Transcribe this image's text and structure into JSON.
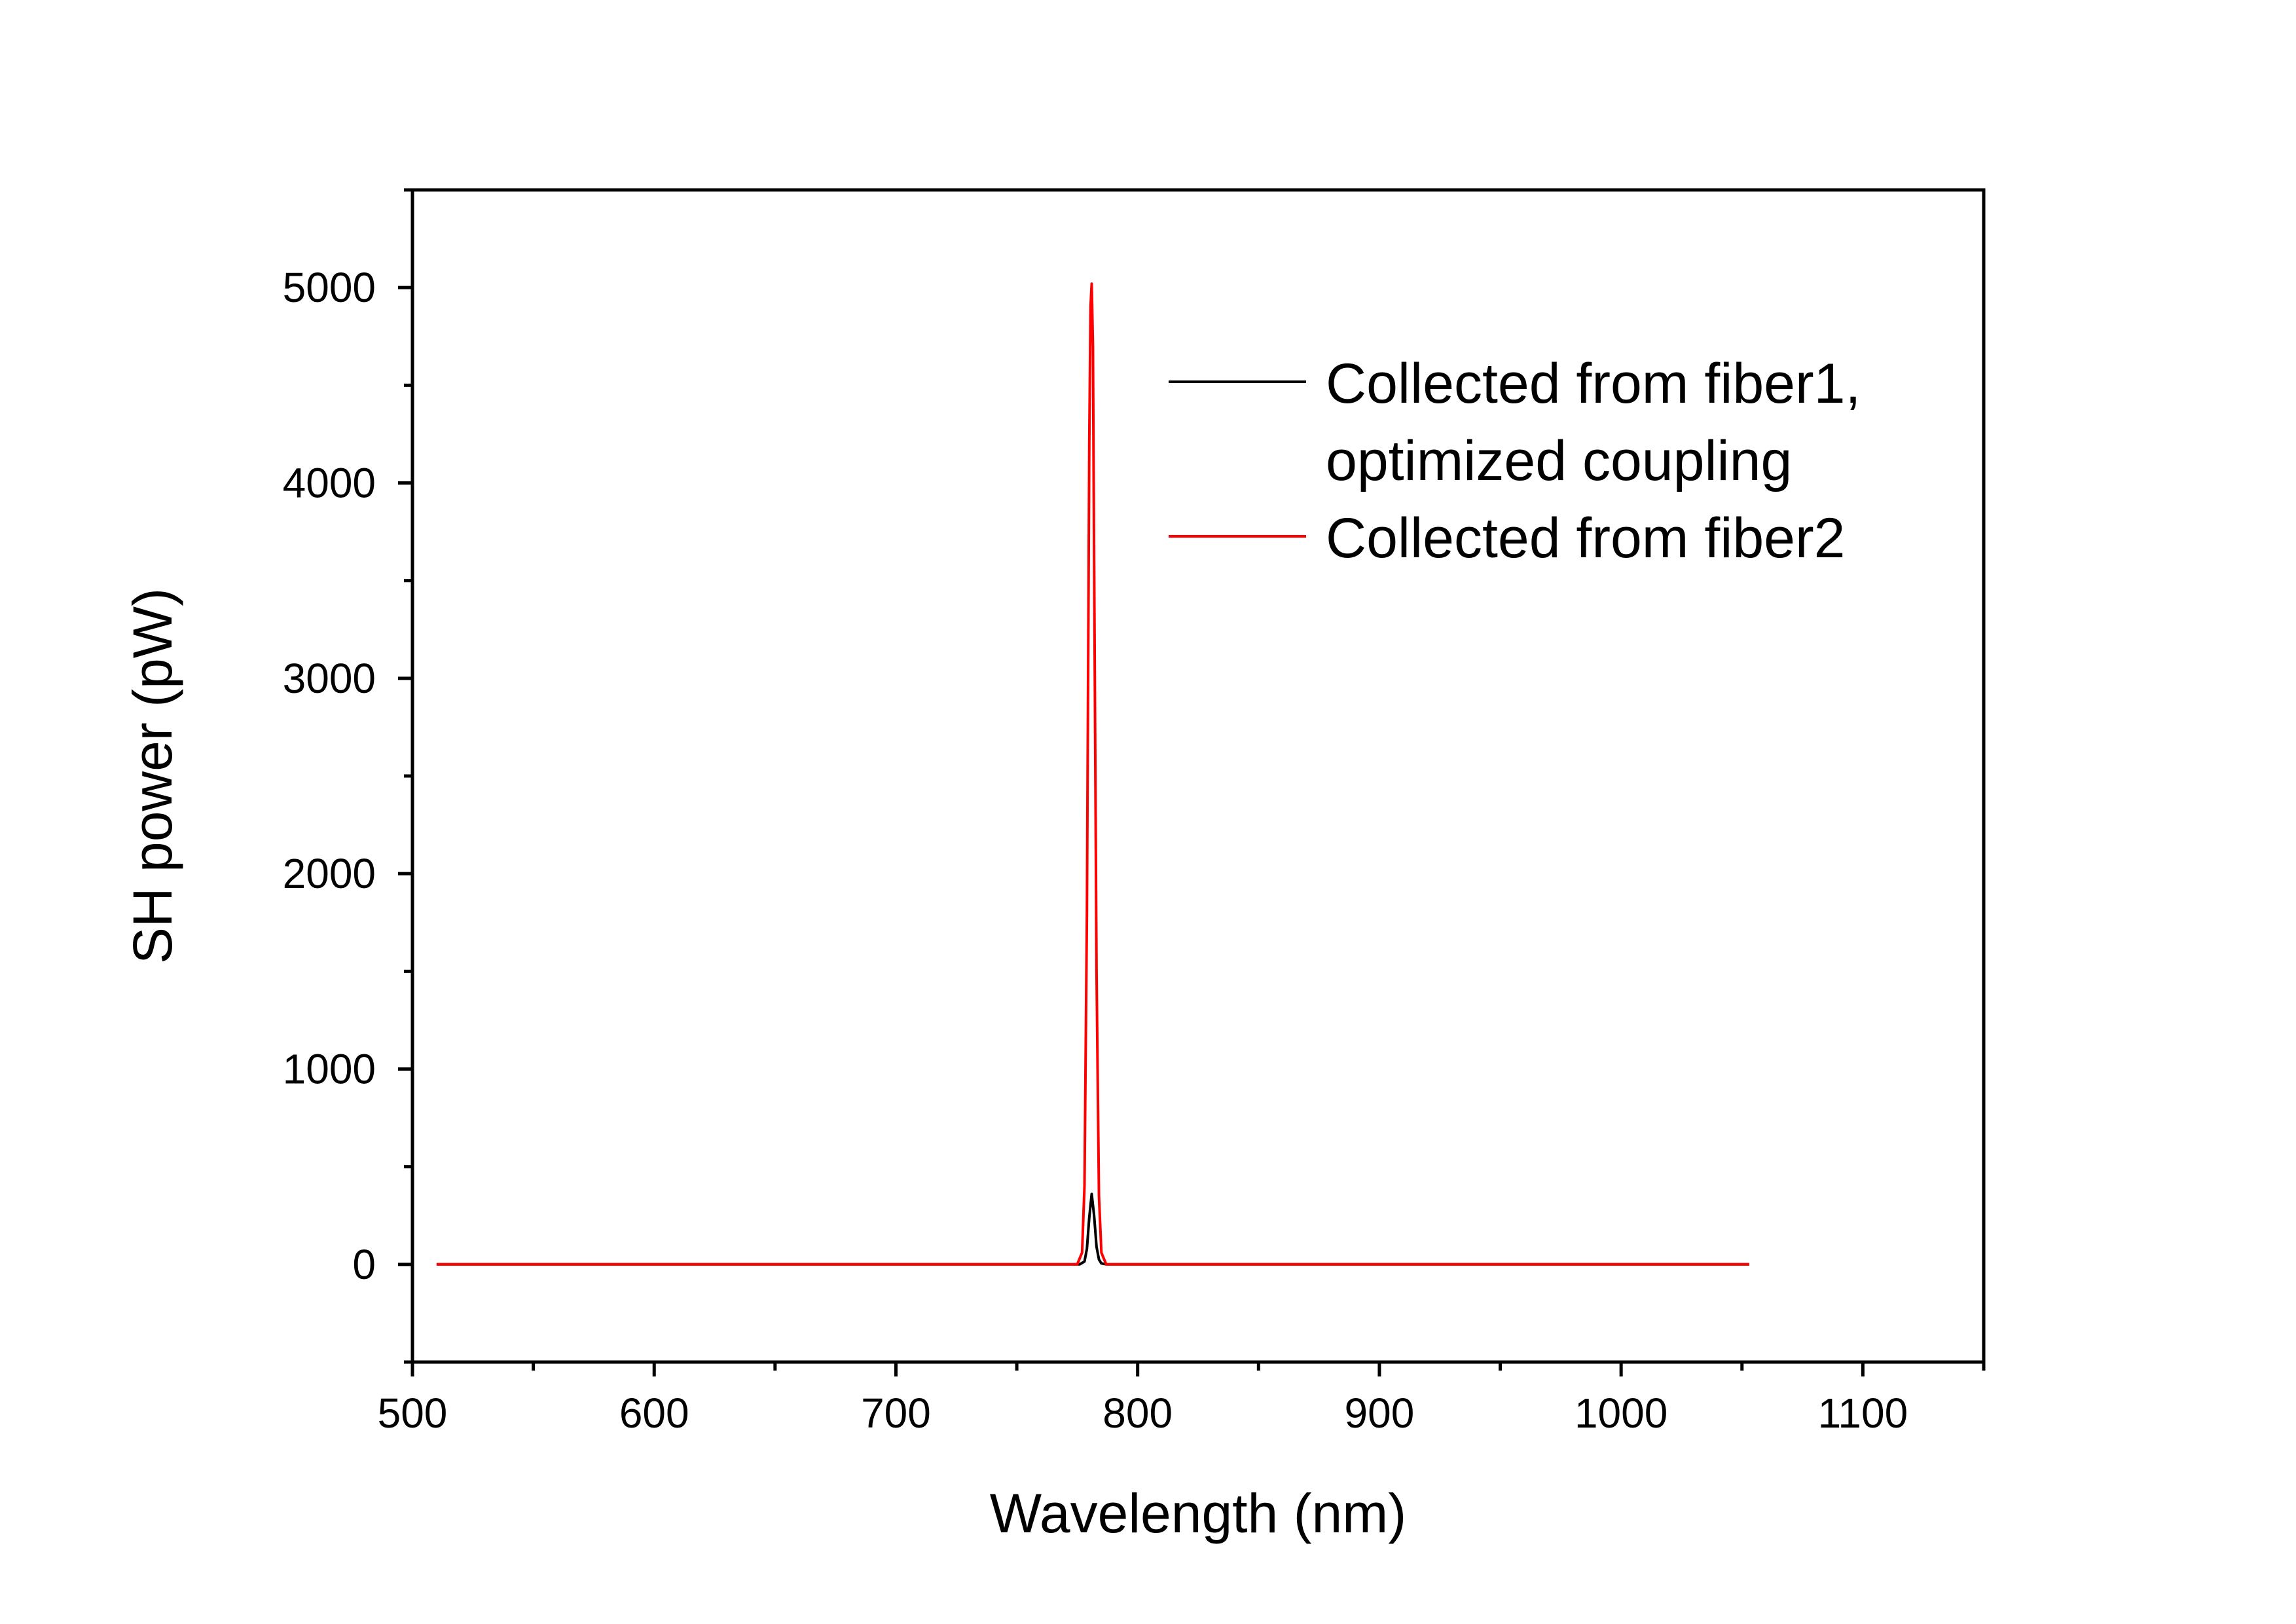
{
  "chart_data": {
    "type": "line",
    "title": "",
    "xlabel": "Wavelength (nm)",
    "ylabel": "SH power (pW)",
    "xlim": [
      500,
      1150
    ],
    "ylim": [
      -500,
      5500
    ],
    "x_ticks": [
      500,
      600,
      700,
      800,
      900,
      1000,
      1100
    ],
    "x_tick_labels": [
      "500",
      "600",
      "700",
      "800",
      "900",
      "1000",
      "1100"
    ],
    "y_ticks": [
      0,
      1000,
      2000,
      3000,
      4000,
      5000
    ],
    "y_tick_labels": [
      "0",
      "1000",
      "2000",
      "3000",
      "4000",
      "5000"
    ],
    "grid": false,
    "legend_position": "top-right",
    "series": [
      {
        "name_lines": [
          "Collected from fiber1,",
          "optimized coupling"
        ],
        "color": "#000000",
        "x": [
          510,
          776,
          778,
          779,
          780,
          781,
          782,
          783,
          784,
          785,
          787,
          1053
        ],
        "y": [
          0,
          0,
          15,
          80,
          240,
          360,
          250,
          90,
          25,
          5,
          0,
          0
        ]
      },
      {
        "name_lines": [
          "Collected from fiber2"
        ],
        "color": "#ff0000",
        "x": [
          510,
          775,
          777,
          778,
          779,
          780,
          780.5,
          781,
          781.5,
          782,
          783,
          784,
          785,
          787,
          1053
        ],
        "y": [
          0,
          0,
          60,
          400,
          1800,
          4200,
          4900,
          5020,
          4700,
          3600,
          1500,
          350,
          60,
          0,
          0
        ]
      }
    ]
  }
}
